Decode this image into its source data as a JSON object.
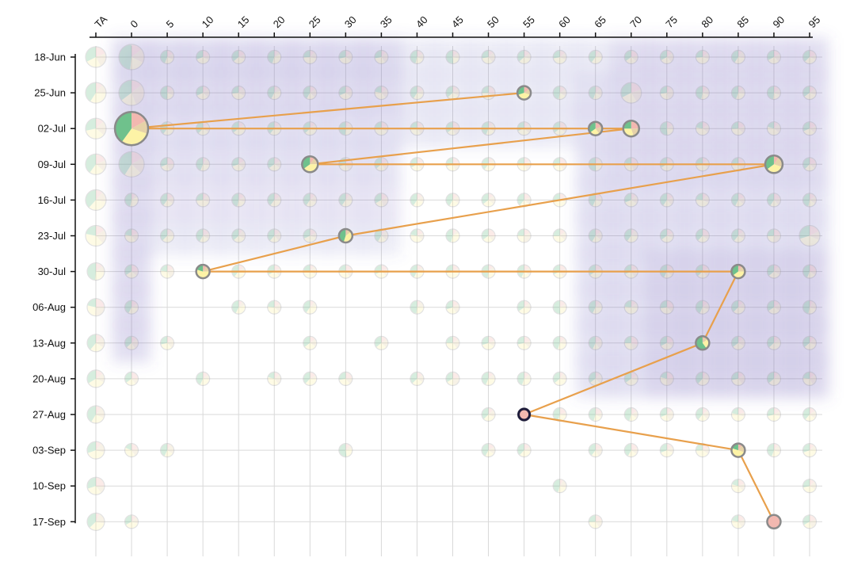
{
  "chart_data": {
    "type": "scatter",
    "x_categories": [
      "TA",
      "0",
      "5",
      "10",
      "15",
      "20",
      "25",
      "30",
      "35",
      "40",
      "45",
      "50",
      "55",
      "60",
      "65",
      "70",
      "75",
      "80",
      "85",
      "90",
      "95"
    ],
    "y_categories": [
      "18-Jun",
      "25-Jun",
      "02-Jul",
      "09-Jul",
      "16-Jul",
      "23-Jul",
      "30-Jul",
      "06-Aug",
      "13-Aug",
      "20-Aug",
      "27-Aug",
      "03-Sep",
      "10-Sep",
      "17-Sep"
    ],
    "x_axis_position": "top",
    "grid": true,
    "slice_colors": [
      "#f2b8b0",
      "#e6d2a8",
      "#fdf3a6",
      "#6fc18c"
    ],
    "path_color": "#e8a04c",
    "highlight_point_stroke": "#1d1b3a",
    "density_color": "#6b5fb8",
    "path": [
      {
        "x": "55",
        "y": "25-Jun",
        "slices": [
          0.15,
          0.15,
          0.4,
          0.3
        ]
      },
      {
        "x": "0",
        "y": "02-Jul",
        "slices": [
          0.17,
          0.13,
          0.3,
          0.4
        ]
      },
      {
        "x": "65",
        "y": "02-Jul",
        "slices": [
          0.2,
          0.2,
          0.25,
          0.35
        ]
      },
      {
        "x": "70",
        "y": "02-Jul",
        "slices": [
          0.25,
          0.2,
          0.3,
          0.25
        ]
      },
      {
        "x": "25",
        "y": "09-Jul",
        "slices": [
          0.1,
          0.15,
          0.4,
          0.35
        ]
      },
      {
        "x": "90",
        "y": "09-Jul",
        "slices": [
          0.1,
          0.2,
          0.35,
          0.35
        ]
      },
      {
        "x": "30",
        "y": "23-Jul",
        "slices": [
          0.05,
          0.1,
          0.4,
          0.45
        ]
      },
      {
        "x": "10",
        "y": "30-Jul",
        "slices": [
          0.1,
          0.15,
          0.55,
          0.2
        ]
      },
      {
        "x": "85",
        "y": "30-Jul",
        "slices": [
          0.1,
          0.15,
          0.4,
          0.35
        ]
      },
      {
        "x": "80",
        "y": "13-Aug",
        "slices": [
          0.05,
          0.1,
          0.25,
          0.6
        ]
      },
      {
        "x": "55",
        "y": "27-Aug",
        "slices": [
          1,
          0,
          0,
          0
        ]
      },
      {
        "x": "85",
        "y": "03-Sep",
        "slices": [
          0.1,
          0.2,
          0.5,
          0.2
        ]
      },
      {
        "x": "90",
        "y": "17-Sep",
        "slices": [
          1,
          0,
          0,
          0
        ]
      }
    ]
  }
}
